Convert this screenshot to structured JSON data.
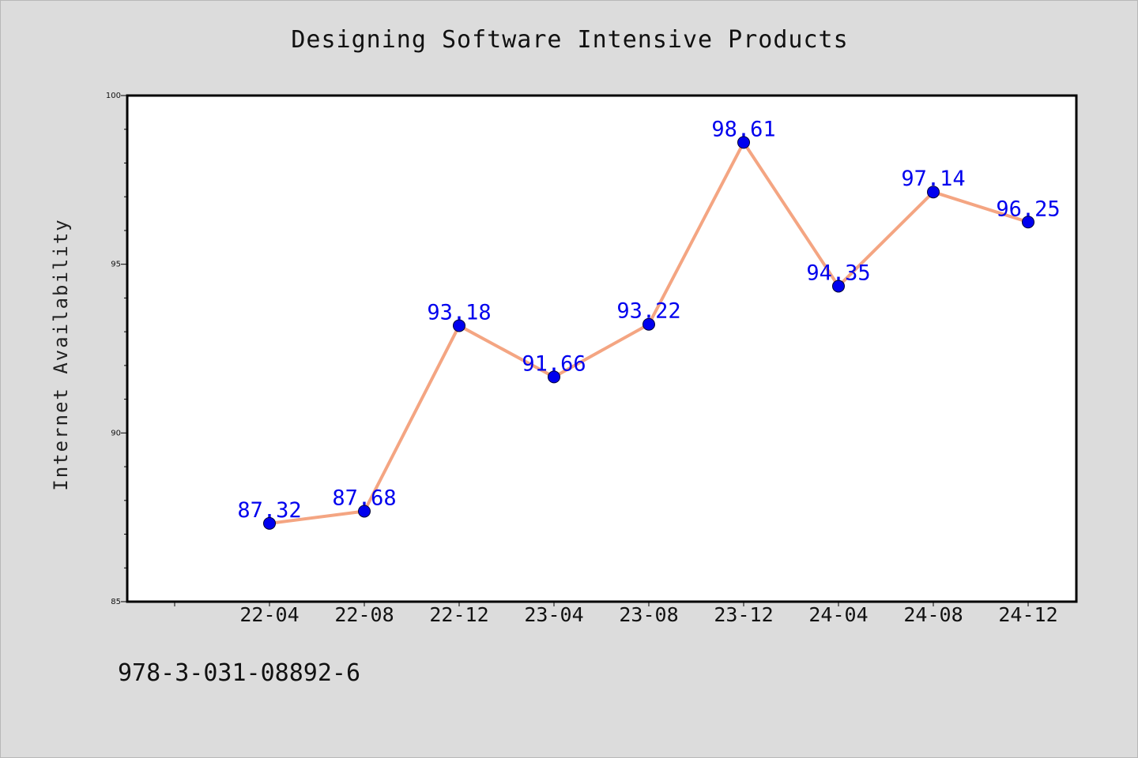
{
  "chart_data": {
    "type": "line",
    "title": "Designing Software Intensive Products",
    "xlabel": "",
    "ylabel": "Internet Availability",
    "categories": [
      "22-04",
      "22-08",
      "22-12",
      "23-04",
      "23-08",
      "23-12",
      "24-04",
      "24-08",
      "24-12"
    ],
    "series": [
      {
        "values": [
          87.32,
          87.68,
          93.18,
          91.66,
          93.22,
          98.61,
          94.35,
          97.14,
          96.25
        ],
        "labels": [
          "87.32",
          "87.68",
          "93.18",
          "91.66",
          "93.22",
          "98.61",
          "94.35",
          "97.14",
          "96.25"
        ],
        "line_color": "#f4a582",
        "marker_color": "#0000ee"
      }
    ],
    "ylim": [
      85,
      100
    ],
    "yticks": [
      85,
      90,
      95,
      100
    ],
    "ytick_labels": [
      "85",
      "90",
      "95",
      "100"
    ],
    "grid": false,
    "legend": "none"
  },
  "footer": {
    "isbn": "978-3-031-08892-6"
  }
}
